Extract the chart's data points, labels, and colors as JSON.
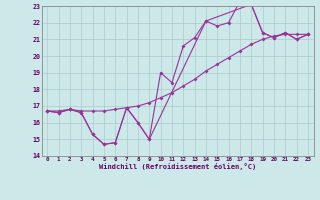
{
  "xlabel": "Windchill (Refroidissement éolien,°C)",
  "xlim": [
    -0.5,
    23.5
  ],
  "ylim": [
    14,
    23
  ],
  "yticks": [
    14,
    15,
    16,
    17,
    18,
    19,
    20,
    21,
    22,
    23
  ],
  "xticks": [
    0,
    1,
    2,
    3,
    4,
    5,
    6,
    7,
    8,
    9,
    10,
    11,
    12,
    13,
    14,
    15,
    16,
    17,
    18,
    19,
    20,
    21,
    22,
    23
  ],
  "bg_color": "#cce8e8",
  "grid_color": "#aacccc",
  "line_color": "#993399",
  "line1_x": [
    0,
    1,
    2,
    3,
    4,
    5,
    6,
    7,
    8,
    9,
    10,
    11,
    12,
    13,
    14,
    15,
    16,
    17,
    18,
    19,
    20,
    21,
    22,
    23
  ],
  "line1_y": [
    16.7,
    16.6,
    16.8,
    16.6,
    15.3,
    14.7,
    14.8,
    16.9,
    16.0,
    15.0,
    19.0,
    18.4,
    20.6,
    21.1,
    22.1,
    21.8,
    22.0,
    23.3,
    23.1,
    21.4,
    21.1,
    21.4,
    21.0,
    21.3
  ],
  "line2_x": [
    0,
    1,
    2,
    3,
    4,
    5,
    6,
    7,
    8,
    9,
    10,
    11,
    12,
    13,
    14,
    15,
    16,
    17,
    18,
    19,
    20,
    21,
    22,
    23
  ],
  "line2_y": [
    16.7,
    16.7,
    16.8,
    16.7,
    16.7,
    16.7,
    16.8,
    16.9,
    17.0,
    17.2,
    17.5,
    17.8,
    18.2,
    18.6,
    19.1,
    19.5,
    19.9,
    20.3,
    20.7,
    21.0,
    21.2,
    21.3,
    21.3,
    21.3
  ],
  "line3_x": [
    0,
    1,
    2,
    3,
    4,
    5,
    6,
    7,
    8,
    9,
    14,
    18,
    19,
    20,
    21,
    22,
    23
  ],
  "line3_y": [
    16.7,
    16.6,
    16.8,
    16.6,
    15.3,
    14.7,
    14.8,
    16.9,
    16.0,
    15.0,
    22.1,
    23.1,
    21.4,
    21.1,
    21.4,
    21.0,
    21.3
  ]
}
